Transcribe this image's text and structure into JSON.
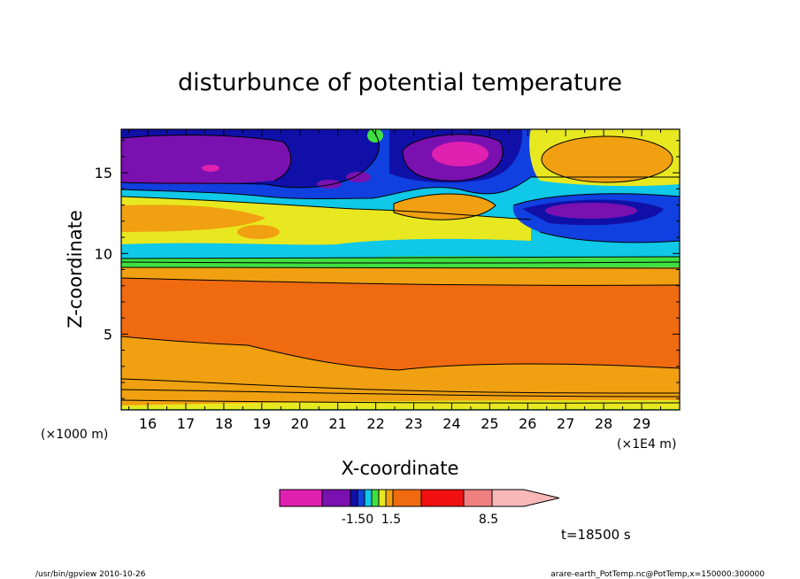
{
  "chart_data": {
    "type": "heatmap",
    "title": "disturbunce of potential temperature",
    "xlabel": "X-coordinate",
    "ylabel": "Z-coordinate",
    "x_unit_left": "(×1000 m)",
    "x_unit_right": "(×1E4 m)",
    "xlim": [
      15.3,
      30.0
    ],
    "ylim": [
      0.3,
      17.7
    ],
    "x_ticks": [
      "16",
      "17",
      "18",
      "19",
      "20",
      "21",
      "22",
      "23",
      "24",
      "25",
      "26",
      "27",
      "28",
      "29"
    ],
    "y_ticks": [
      "5",
      "10",
      "15"
    ],
    "colorbar": {
      "labels": [
        "-1.50",
        "1.5",
        "8.5"
      ],
      "colors": [
        "#e020b0",
        "#7a10b0",
        "#1010a8",
        "#1040e0",
        "#10c8e8",
        "#40e040",
        "#e8e820",
        "#f0a010",
        "#f06a10",
        "#f01010",
        "#f08080",
        "#f8b8b8"
      ]
    },
    "time_label": "t=18500 s"
  },
  "footer": {
    "left": "/usr/bin/gpview   2010-10-26",
    "right": "arare-earth_PotTemp.nc@PotTemp,x=150000:300000"
  }
}
